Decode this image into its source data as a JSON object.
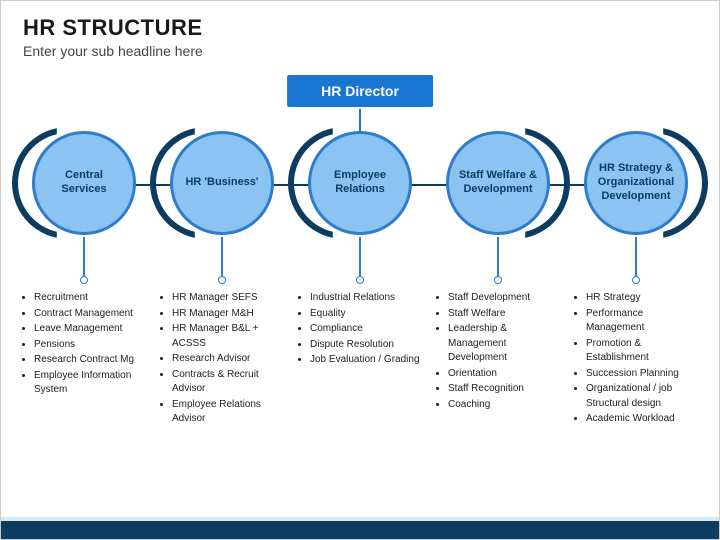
{
  "header": {
    "title": "HR STRUCTURE",
    "subtitle": "Enter your sub headline here"
  },
  "diagram": {
    "director": {
      "label": "HR Director",
      "bg_color": "#1976d2",
      "text_color": "#ffffff"
    },
    "circle_fill": "#8bc3f2",
    "circle_border": "#2e7dcc",
    "arc_color": "#0d3c61",
    "line_color": "#0d3c61",
    "nodes": [
      {
        "label": "Central Services",
        "arc_side": "left",
        "items": [
          "Recruitment",
          "Contract Management",
          "Leave Management",
          "Pensions",
          "Research Contract Mg",
          "Employee Information System"
        ]
      },
      {
        "label": "HR 'Business'",
        "arc_side": "left",
        "items": [
          "HR Manager SEFS",
          "HR Manager M&H",
          "HR Manager B&L + ACSSS",
          "Research Advisor",
          "Contracts & Recruit Advisor",
          "Employee Relations Advisor"
        ]
      },
      {
        "label": "Employee Relations",
        "arc_side": "left",
        "items": [
          "Industrial Relations",
          "Equality",
          "Compliance",
          "Dispute Resolution",
          "Job Evaluation / Grading"
        ]
      },
      {
        "label": "Staff Welfare & Development",
        "arc_side": "right",
        "items": [
          "Staff Development",
          "Staff Welfare",
          "Leadership & Management Development",
          "Orientation",
          "Staff Recognition",
          "Coaching"
        ]
      },
      {
        "label": "HR Strategy & Organizational Development",
        "arc_side": "right",
        "items": [
          "HR Strategy",
          "Performance Management",
          "Promotion & Establishment",
          "Succession Planning",
          "Organizational / job Structural design",
          "Academic Workload"
        ]
      }
    ]
  },
  "footer": {
    "bar_color": "#0d3c61",
    "light_color": "#d9e8f5"
  }
}
